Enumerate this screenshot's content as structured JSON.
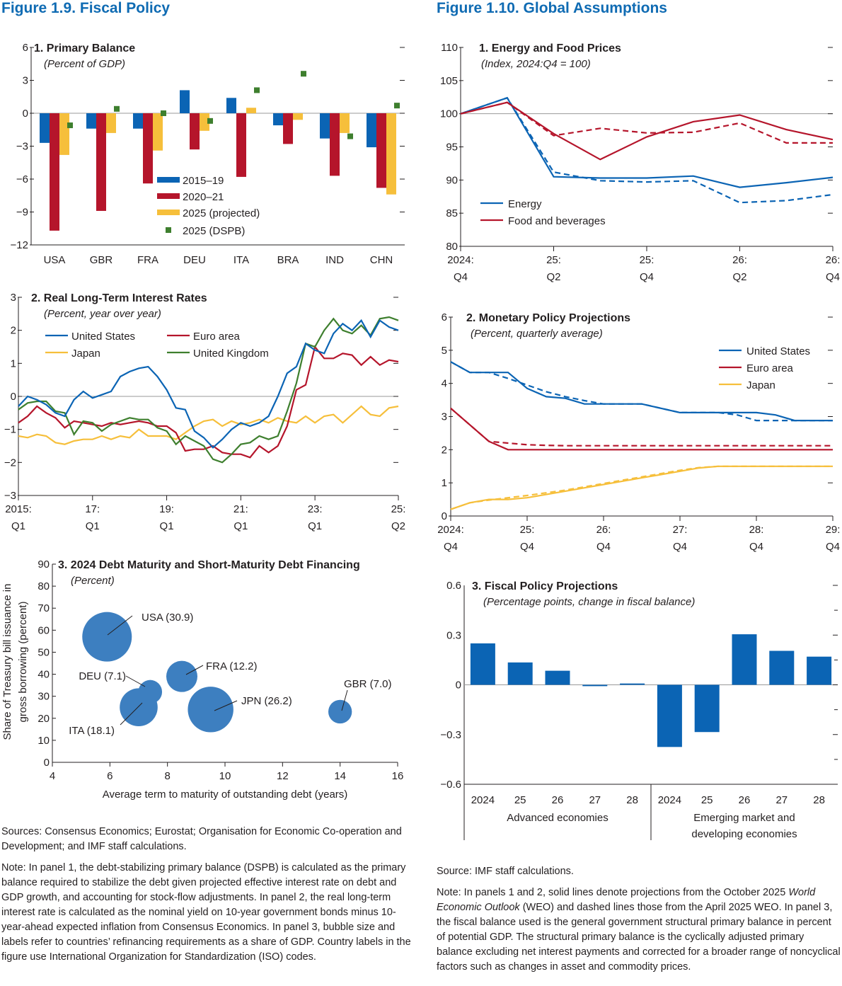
{
  "left": {
    "figure_title": "Figure 1.9.  Fiscal Policy",
    "sources": "Sources: Consensus Economics; Eurostat; Organisation for Economic Co-operation and Development; and IMF staff calculations.",
    "note": "Note: In panel 1, the debt-stabilizing primary balance (DSPB) is calculated as the primary balance required to stabilize the debt given projected effective interest rate on debt and GDP growth, and accounting for stock-flow adjustments. In panel 2, the real long-term interest rate is calculated as the nominal yield on 10-year government bonds minus 10-year-ahead expected inflation from Consensus Economics. In panel 3, bubble size and labels refer to countries’ refinancing requirements as a share of GDP. Country labels in the figure use International Organization for Standardization (ISO) codes."
  },
  "right": {
    "figure_title": "Figure 1.10.  Global Assumptions",
    "sources": "Source: IMF staff calculations.",
    "note_a": "Note: In panels 1 and 2, solid lines denote projections from the October 2025 ",
    "note_em": "World Economic Outlook",
    "note_b": " (WEO) and dashed lines those from the April 2025 WEO. In panel 3, the fiscal balance used is the general government structural primary balance in percent of potential GDP. The structural primary balance is the cyclically adjusted primary balance excluding net interest payments and corrected for a broader range of noncyclical factors such as changes in asset and commodity prices."
  },
  "colors": {
    "blue": "#0b64b4",
    "red": "#b5152b",
    "yellow": "#f6bf3b",
    "green": "#3e7f2e",
    "bubble": "#3d7fc0",
    "title": "#0f6bb3"
  },
  "chart_data": [
    {
      "id": "primary_balance",
      "type": "bar",
      "title": "1. Primary Balance",
      "subtitle": "(Percent of GDP)",
      "ylim": [
        -12,
        6
      ],
      "yticks": [
        "6",
        "3",
        "0",
        "−3",
        "−6",
        "−9",
        "−12"
      ],
      "categories": [
        "USA",
        "GBR",
        "FRA",
        "DEU",
        "ITA",
        "BRA",
        "IND",
        "CHN"
      ],
      "series": [
        {
          "name": "2015–19",
          "values": [
            -2.7,
            -1.4,
            -1.4,
            2.1,
            1.4,
            -1.1,
            -2.3,
            -3.1
          ]
        },
        {
          "name": "2020–21",
          "values": [
            -10.7,
            -8.9,
            -6.4,
            -3.3,
            -5.8,
            -2.8,
            -5.7,
            -6.8
          ]
        },
        {
          "name": "2025 (projected)",
          "values": [
            -3.8,
            -1.8,
            -3.4,
            -1.6,
            0.5,
            -0.6,
            -1.8,
            -7.4
          ]
        }
      ],
      "markers": {
        "name": "2025 (DSPB)",
        "values": [
          -1.1,
          0.4,
          0.0,
          -0.7,
          2.1,
          3.6,
          -2.1,
          0.7
        ]
      }
    },
    {
      "id": "real_rates",
      "type": "line",
      "title": "2. Real Long-Term Interest Rates",
      "subtitle": "(Percent, year over year)",
      "ylim": [
        -3,
        3
      ],
      "yticks": [
        "3",
        "2",
        "1",
        "0",
        "−1",
        "−2",
        "−3"
      ],
      "xticks": [
        [
          "2015:",
          "Q1"
        ],
        [
          "17:",
          "Q1"
        ],
        [
          "19:",
          "Q1"
        ],
        [
          "21:",
          "Q1"
        ],
        [
          "23:",
          "Q1"
        ],
        [
          "25:",
          "Q2"
        ]
      ],
      "x_start": "2015:Q1",
      "series": [
        {
          "name": "United States",
          "values": [
            -0.3,
            0.0,
            -0.1,
            -0.25,
            -0.5,
            -0.6,
            -0.1,
            0.15,
            -0.05,
            0.05,
            0.15,
            0.6,
            0.75,
            0.85,
            0.9,
            0.6,
            0.2,
            -0.35,
            -0.4,
            -1.05,
            -1.25,
            -1.55,
            -1.3,
            -1.0,
            -0.8,
            -0.9,
            -0.8,
            -0.6,
            0.0,
            0.7,
            0.9,
            1.6,
            1.4,
            1.3,
            1.9,
            2.2,
            2.0,
            2.3,
            1.8,
            2.3,
            2.1,
            2.0
          ]
        },
        {
          "name": "Euro area",
          "values": [
            -0.8,
            -0.6,
            -0.3,
            -0.5,
            -0.65,
            -0.95,
            -0.75,
            -0.8,
            -0.85,
            -0.9,
            -0.8,
            -0.85,
            -0.8,
            -0.75,
            -0.8,
            -0.9,
            -0.9,
            -1.1,
            -1.65,
            -1.6,
            -1.6,
            -1.5,
            -1.7,
            -1.75,
            -1.75,
            -1.85,
            -1.5,
            -1.7,
            -1.5,
            -0.9,
            0.2,
            0.35,
            1.5,
            1.15,
            1.15,
            1.3,
            1.25,
            0.95,
            1.2,
            0.95,
            1.1,
            1.05
          ]
        },
        {
          "name": "Japan",
          "values": [
            -1.2,
            -1.25,
            -1.15,
            -1.2,
            -1.4,
            -1.45,
            -1.35,
            -1.3,
            -1.3,
            -1.2,
            -1.3,
            -1.2,
            -1.25,
            -1.0,
            -1.2,
            -1.2,
            -1.2,
            -1.3,
            -1.1,
            -0.9,
            -0.75,
            -0.7,
            -0.9,
            -0.75,
            -0.85,
            -0.8,
            -0.7,
            -0.8,
            -0.65,
            -0.75,
            -0.8,
            -0.6,
            -0.8,
            -0.6,
            -0.55,
            -0.8,
            -0.55,
            -0.3,
            -0.55,
            -0.6,
            -0.35,
            -0.3
          ]
        },
        {
          "name": "United Kingdom",
          "values": [
            -0.4,
            -0.2,
            -0.15,
            -0.15,
            -0.45,
            -0.5,
            -1.15,
            -0.75,
            -0.8,
            -1.05,
            -0.85,
            -0.75,
            -0.65,
            -0.7,
            -0.7,
            -0.95,
            -1.05,
            -1.45,
            -1.2,
            -1.35,
            -1.5,
            -1.9,
            -2.0,
            -1.75,
            -1.45,
            -1.4,
            -1.2,
            -1.3,
            -1.2,
            -0.45,
            0.4,
            1.6,
            1.5,
            2.0,
            2.35,
            2.0,
            1.9,
            2.15,
            1.85,
            2.35,
            2.4,
            2.3
          ]
        }
      ]
    },
    {
      "id": "debt_maturity",
      "type": "scatter",
      "title": "3. 2024 Debt Maturity and Short-Maturity Debt Financing",
      "subtitle": "(Percent)",
      "xlabel": "Average term to maturity of outstanding debt (years)",
      "ylabel_lines": [
        "Share of Treasury bill issuance in",
        "gross borrowing (percent)"
      ],
      "xlim": [
        4,
        16
      ],
      "ylim": [
        0,
        90
      ],
      "xticks": [
        "4",
        "6",
        "8",
        "10",
        "12",
        "14",
        "16"
      ],
      "yticks": [
        "90",
        "80",
        "70",
        "60",
        "50",
        "40",
        "30",
        "20",
        "10",
        "0"
      ],
      "points": [
        {
          "label": "USA (30.9)",
          "x": 5.9,
          "y": 57,
          "size": 30.9
        },
        {
          "label": "DEU (7.1)",
          "x": 7.4,
          "y": 32,
          "size": 7.1
        },
        {
          "label": "ITA (18.1)",
          "x": 7.0,
          "y": 25,
          "size": 18.1
        },
        {
          "label": "FRA (12.2)",
          "x": 8.5,
          "y": 39,
          "size": 12.2
        },
        {
          "label": "JPN (26.2)",
          "x": 9.5,
          "y": 24,
          "size": 26.2
        },
        {
          "label": "GBR (7.0)",
          "x": 14.0,
          "y": 23,
          "size": 7.0
        }
      ]
    },
    {
      "id": "energy_food",
      "type": "line",
      "title": "1. Energy and Food Prices",
      "subtitle": "(Index, 2024:Q4 = 100)",
      "ylim": [
        80,
        110
      ],
      "yticks": [
        "110",
        "105",
        "100",
        "95",
        "90",
        "85",
        "80"
      ],
      "xticks": [
        [
          "2024:",
          "Q4"
        ],
        [
          "25:",
          "Q2"
        ],
        [
          "25:",
          "Q4"
        ],
        [
          "26:",
          "Q2"
        ],
        [
          "26:",
          "Q4"
        ]
      ],
      "x_start": "2024:Q4",
      "series": [
        {
          "name": "Energy",
          "style": "solid",
          "values": [
            100,
            102.4,
            90.5,
            90.3,
            90.3,
            90.6,
            88.9,
            89.6,
            90.4
          ]
        },
        {
          "name": "Energy (April 2025 WEO)",
          "style": "dashed",
          "values": [
            100,
            102.4,
            91.2,
            89.9,
            89.7,
            89.9,
            86.6,
            86.9,
            87.8
          ]
        },
        {
          "name": "Food and beverages",
          "style": "solid",
          "values": [
            100,
            101.7,
            97.0,
            93.1,
            96.5,
            98.8,
            99.8,
            97.6,
            96.1
          ]
        },
        {
          "name": "Food and beverages (April 2025 WEO)",
          "style": "dashed",
          "values": [
            100,
            101.7,
            96.7,
            97.8,
            97.1,
            97.2,
            98.6,
            95.6,
            95.6
          ]
        }
      ],
      "legend": [
        "Energy",
        "Food and beverages"
      ]
    },
    {
      "id": "monetary_policy",
      "type": "line",
      "title": "2. Monetary Policy Projections",
      "subtitle": "(Percent, quarterly average)",
      "ylim": [
        0,
        6
      ],
      "yticks": [
        "6",
        "5",
        "4",
        "3",
        "2",
        "1",
        "0"
      ],
      "xticks": [
        [
          "2024:",
          "Q4"
        ],
        [
          "25:",
          "Q4"
        ],
        [
          "26:",
          "Q4"
        ],
        [
          "27:",
          "Q4"
        ],
        [
          "28:",
          "Q4"
        ],
        [
          "29:",
          "Q4"
        ]
      ],
      "x_start": "2024:Q4",
      "series": [
        {
          "name": "United States",
          "style": "solid",
          "values": [
            4.65,
            4.33,
            4.33,
            4.33,
            3.85,
            3.6,
            3.55,
            3.38,
            3.38,
            3.38,
            3.38,
            3.25,
            3.12,
            3.12,
            3.12,
            3.12,
            3.12,
            3.05,
            2.88,
            2.88,
            2.88
          ]
        },
        {
          "name": "United States (April 2025 WEO)",
          "style": "dashed",
          "values": [
            4.65,
            4.33,
            4.33,
            4.15,
            3.95,
            3.75,
            3.6,
            3.48,
            3.38,
            3.38,
            3.38,
            3.25,
            3.12,
            3.12,
            3.12,
            3.05,
            2.88,
            2.88,
            2.88,
            2.88,
            2.88
          ]
        },
        {
          "name": "Euro area",
          "style": "solid",
          "values": [
            3.25,
            2.75,
            2.25,
            2.0,
            2.0,
            2.0,
            2.0,
            2.0,
            2.0,
            2.0,
            2.0,
            2.0,
            2.0,
            2.0,
            2.0,
            2.0,
            2.0,
            2.0,
            2.0,
            2.0,
            2.0
          ]
        },
        {
          "name": "Euro area (April 2025 WEO)",
          "style": "dashed",
          "values": [
            3.25,
            2.75,
            2.25,
            2.2,
            2.15,
            2.13,
            2.12,
            2.12,
            2.12,
            2.12,
            2.12,
            2.12,
            2.12,
            2.12,
            2.12,
            2.12,
            2.12,
            2.12,
            2.12,
            2.12,
            2.12
          ]
        },
        {
          "name": "Japan",
          "style": "solid",
          "values": [
            0.2,
            0.4,
            0.5,
            0.5,
            0.55,
            0.65,
            0.75,
            0.85,
            0.95,
            1.05,
            1.15,
            1.25,
            1.35,
            1.45,
            1.5,
            1.5,
            1.5,
            1.5,
            1.5,
            1.5,
            1.5
          ]
        },
        {
          "name": "Japan (April 2025 WEO)",
          "style": "dashed",
          "values": [
            0.2,
            0.4,
            0.48,
            0.55,
            0.62,
            0.7,
            0.78,
            0.88,
            0.98,
            1.08,
            1.18,
            1.28,
            1.38,
            1.46,
            1.5,
            1.5,
            1.5,
            1.5,
            1.5,
            1.5,
            1.5
          ]
        }
      ],
      "legend": [
        "United States",
        "Euro area",
        "Japan"
      ]
    },
    {
      "id": "fiscal_projections",
      "type": "bar",
      "title": "3. Fiscal Policy Projections",
      "subtitle": "(Percentage points, change in fiscal balance)",
      "ylim": [
        -0.6,
        0.6
      ],
      "yticks": [
        "0.6",
        "0.3",
        "0",
        "−0.3",
        "−0.6"
      ],
      "categories": [
        "2024",
        "25",
        "26",
        "27",
        "28",
        "2024",
        "25",
        "26",
        "27",
        "28"
      ],
      "groups": [
        {
          "label_lines": [
            "Advanced economies"
          ]
        },
        {
          "label_lines": [
            "Emerging market and",
            "developing economies"
          ]
        }
      ],
      "values": [
        0.25,
        0.135,
        0.085,
        -0.008,
        0.008,
        -0.375,
        -0.285,
        0.305,
        0.205,
        0.17
      ]
    }
  ]
}
